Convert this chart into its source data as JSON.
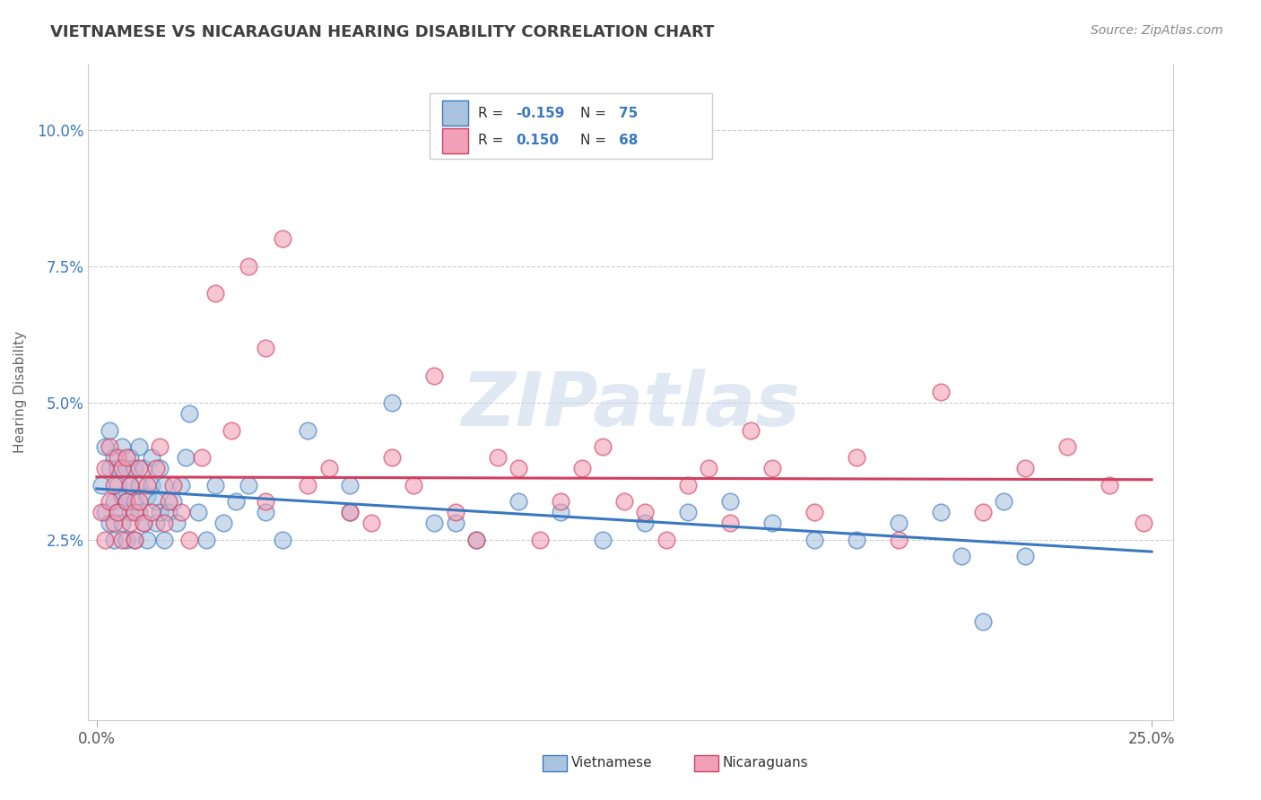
{
  "title": "VIETNAMESE VS NICARAGUAN HEARING DISABILITY CORRELATION CHART",
  "source": "Source: ZipAtlas.com",
  "ylabel": "Hearing Disability",
  "xlim": [
    -0.002,
    0.255
  ],
  "ylim": [
    -0.008,
    0.112
  ],
  "xticks": [
    0.0,
    0.25
  ],
  "xticklabels": [
    "0.0%",
    "25.0%"
  ],
  "yticks": [
    0.025,
    0.05,
    0.075,
    0.1
  ],
  "yticklabels": [
    "2.5%",
    "5.0%",
    "7.5%",
    "10.0%"
  ],
  "color_vietnamese": "#aac4e0",
  "color_nicaraguan": "#f0a0b8",
  "color_trend_vietnamese": "#3a78c0",
  "color_trend_nicaraguan": "#d04060",
  "watermark": "ZIPatlas",
  "background_color": "#ffffff",
  "title_color": "#404040",
  "source_color": "#888888",
  "vietnamese_scatter_x": [
    0.001,
    0.002,
    0.002,
    0.003,
    0.003,
    0.003,
    0.004,
    0.004,
    0.004,
    0.005,
    0.005,
    0.005,
    0.006,
    0.006,
    0.006,
    0.007,
    0.007,
    0.007,
    0.008,
    0.008,
    0.008,
    0.009,
    0.009,
    0.009,
    0.01,
    0.01,
    0.01,
    0.011,
    0.011,
    0.012,
    0.012,
    0.013,
    0.013,
    0.014,
    0.014,
    0.015,
    0.015,
    0.016,
    0.016,
    0.017,
    0.018,
    0.019,
    0.02,
    0.021,
    0.022,
    0.024,
    0.026,
    0.028,
    0.03,
    0.033,
    0.036,
    0.04,
    0.044,
    0.05,
    0.06,
    0.07,
    0.085,
    0.1,
    0.12,
    0.14,
    0.16,
    0.18,
    0.2,
    0.215,
    0.22,
    0.06,
    0.08,
    0.09,
    0.11,
    0.13,
    0.15,
    0.17,
    0.19,
    0.205,
    0.21
  ],
  "vietnamese_scatter_y": [
    0.035,
    0.03,
    0.042,
    0.038,
    0.028,
    0.045,
    0.032,
    0.04,
    0.025,
    0.035,
    0.03,
    0.038,
    0.028,
    0.042,
    0.033,
    0.038,
    0.025,
    0.032,
    0.04,
    0.03,
    0.035,
    0.025,
    0.038,
    0.032,
    0.03,
    0.042,
    0.035,
    0.028,
    0.038,
    0.033,
    0.025,
    0.035,
    0.04,
    0.028,
    0.032,
    0.038,
    0.03,
    0.025,
    0.035,
    0.03,
    0.032,
    0.028,
    0.035,
    0.04,
    0.048,
    0.03,
    0.025,
    0.035,
    0.028,
    0.032,
    0.035,
    0.03,
    0.025,
    0.045,
    0.03,
    0.05,
    0.028,
    0.032,
    0.025,
    0.03,
    0.028,
    0.025,
    0.03,
    0.032,
    0.022,
    0.035,
    0.028,
    0.025,
    0.03,
    0.028,
    0.032,
    0.025,
    0.028,
    0.022,
    0.01
  ],
  "nicaraguan_scatter_x": [
    0.001,
    0.002,
    0.002,
    0.003,
    0.003,
    0.004,
    0.004,
    0.005,
    0.005,
    0.006,
    0.006,
    0.007,
    0.007,
    0.008,
    0.008,
    0.009,
    0.009,
    0.01,
    0.01,
    0.011,
    0.012,
    0.013,
    0.014,
    0.015,
    0.016,
    0.017,
    0.018,
    0.02,
    0.022,
    0.025,
    0.028,
    0.032,
    0.036,
    0.04,
    0.044,
    0.05,
    0.06,
    0.07,
    0.08,
    0.09,
    0.1,
    0.11,
    0.12,
    0.13,
    0.14,
    0.15,
    0.16,
    0.17,
    0.18,
    0.19,
    0.2,
    0.21,
    0.22,
    0.23,
    0.24,
    0.248,
    0.04,
    0.055,
    0.065,
    0.075,
    0.085,
    0.095,
    0.105,
    0.115,
    0.125,
    0.135,
    0.145,
    0.155
  ],
  "nicaraguan_scatter_y": [
    0.03,
    0.038,
    0.025,
    0.042,
    0.032,
    0.028,
    0.035,
    0.04,
    0.03,
    0.025,
    0.038,
    0.032,
    0.04,
    0.028,
    0.035,
    0.03,
    0.025,
    0.038,
    0.032,
    0.028,
    0.035,
    0.03,
    0.038,
    0.042,
    0.028,
    0.032,
    0.035,
    0.03,
    0.025,
    0.04,
    0.07,
    0.045,
    0.075,
    0.06,
    0.08,
    0.035,
    0.03,
    0.04,
    0.055,
    0.025,
    0.038,
    0.032,
    0.042,
    0.03,
    0.035,
    0.028,
    0.038,
    0.03,
    0.04,
    0.025,
    0.052,
    0.03,
    0.038,
    0.042,
    0.035,
    0.028,
    0.032,
    0.038,
    0.028,
    0.035,
    0.03,
    0.04,
    0.025,
    0.038,
    0.032,
    0.025,
    0.038,
    0.045
  ]
}
